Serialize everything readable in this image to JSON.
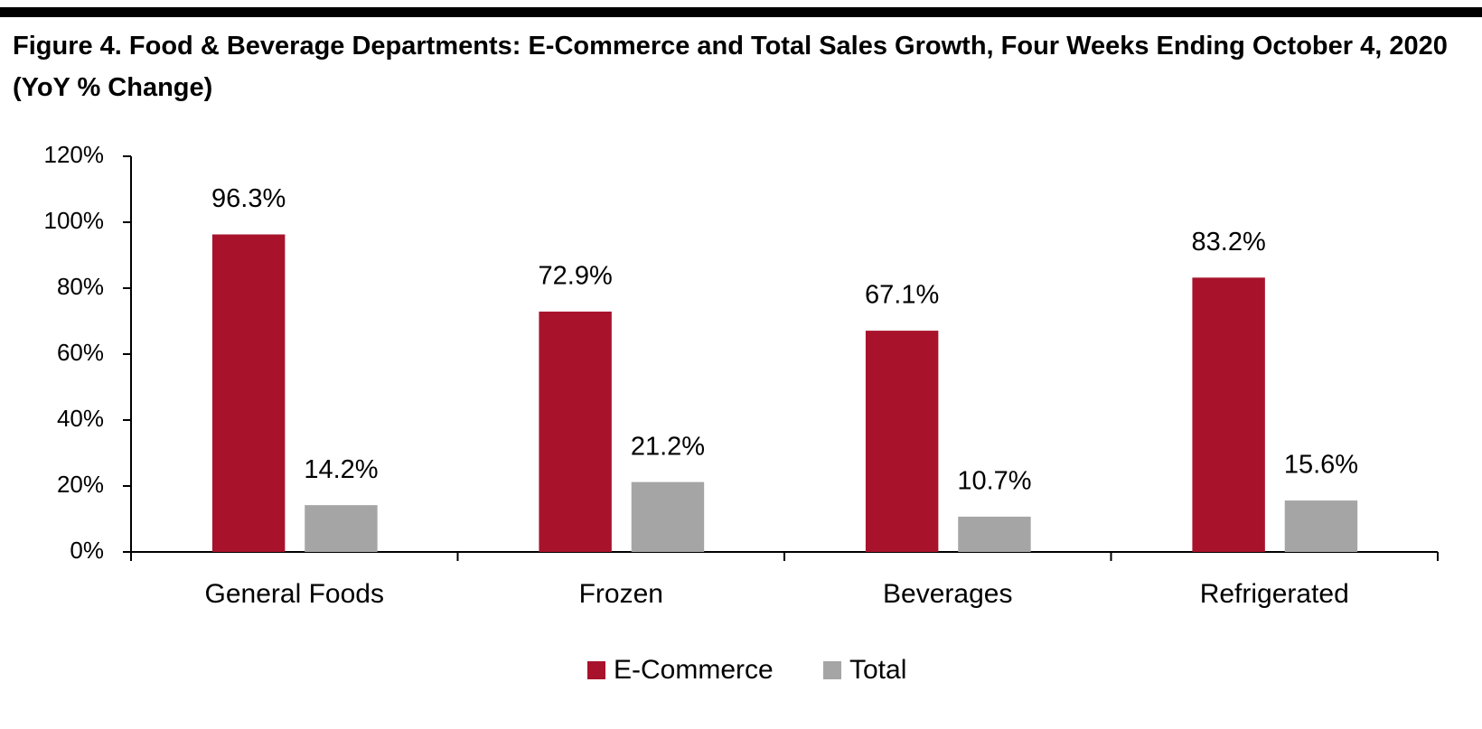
{
  "chart_data": {
    "type": "bar",
    "title": "Figure 4. Food & Beverage Departments: E-Commerce and Total Sales Growth, Four Weeks Ending October 4, 2020 (YoY % Change)",
    "categories": [
      "General Foods",
      "Frozen",
      "Beverages",
      "Refrigerated"
    ],
    "series": [
      {
        "name": "E-Commerce",
        "color": "#a8132b",
        "values": [
          96.3,
          72.9,
          67.1,
          83.2
        ],
        "value_labels": [
          "96.3%",
          "72.9%",
          "67.1%",
          "83.2%"
        ]
      },
      {
        "name": "Total",
        "color": "#a5a5a5",
        "values": [
          14.2,
          21.2,
          10.7,
          15.6
        ],
        "value_labels": [
          "14.2%",
          "21.2%",
          "10.7%",
          "15.6%"
        ]
      }
    ],
    "ylim": [
      0,
      120
    ],
    "yticks": [
      {
        "value": 0,
        "label": "0%"
      },
      {
        "value": 20,
        "label": "20%"
      },
      {
        "value": 40,
        "label": "40%"
      },
      {
        "value": 60,
        "label": "60%"
      },
      {
        "value": 80,
        "label": "80%"
      },
      {
        "value": 100,
        "label": "100%"
      },
      {
        "value": 120,
        "label": "120%"
      }
    ],
    "legend": "bottom"
  }
}
